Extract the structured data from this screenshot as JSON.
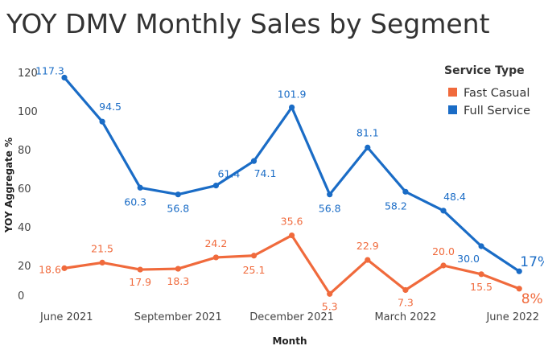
{
  "chart_data": {
    "type": "line",
    "title": "YOY DMV Monthly Sales by Segment",
    "xlabel": "Month",
    "ylabel": "YOY Aggregate %",
    "ylim": [
      0,
      120
    ],
    "yticks": [
      "0",
      "20",
      "40",
      "60",
      "80",
      "100",
      "120"
    ],
    "x": [
      "Jun 2021",
      "Jul 2021",
      "Aug 2021",
      "Sep 2021",
      "Oct 2021",
      "Nov 2021",
      "Dec 2021",
      "Jan 2022",
      "Feb 2022",
      "Mar 2022",
      "Apr 2022",
      "May 2022",
      "Jun 2022"
    ],
    "xtick_labels": [
      {
        "index": 0,
        "text": "June 2021"
      },
      {
        "index": 3,
        "text": "September 2021"
      },
      {
        "index": 6,
        "text": "December 2021"
      },
      {
        "index": 9,
        "text": "March 2022"
      },
      {
        "index": 12,
        "text": "June 2022"
      }
    ],
    "legend": {
      "title": "Service Type",
      "position": "top-right"
    },
    "series": [
      {
        "name": "Fast Casual",
        "color": "#f06a3c",
        "values": [
          18.6,
          21.5,
          17.9,
          18.3,
          24.2,
          25.1,
          35.6,
          5.3,
          22.9,
          7.3,
          20.0,
          15.5,
          8
        ],
        "labels": [
          "18.6",
          "21.5",
          "17.9",
          "18.3",
          "24.2",
          "25.1",
          "35.6",
          "5.3",
          "22.9",
          "7.3",
          "20.0",
          "15.5",
          "8%"
        ]
      },
      {
        "name": "Full Service",
        "color": "#1a6cc6",
        "values": [
          117.3,
          94.5,
          60.3,
          56.8,
          61.4,
          74.1,
          101.9,
          56.8,
          81.1,
          58.2,
          48.4,
          30.0,
          17
        ],
        "labels": [
          "117.3",
          "94.5",
          "60.3",
          "56.8",
          "61.4",
          "74.1",
          "101.9",
          "56.8",
          "81.1",
          "58.2",
          "48.4",
          "30.0",
          "17%"
        ]
      }
    ]
  }
}
